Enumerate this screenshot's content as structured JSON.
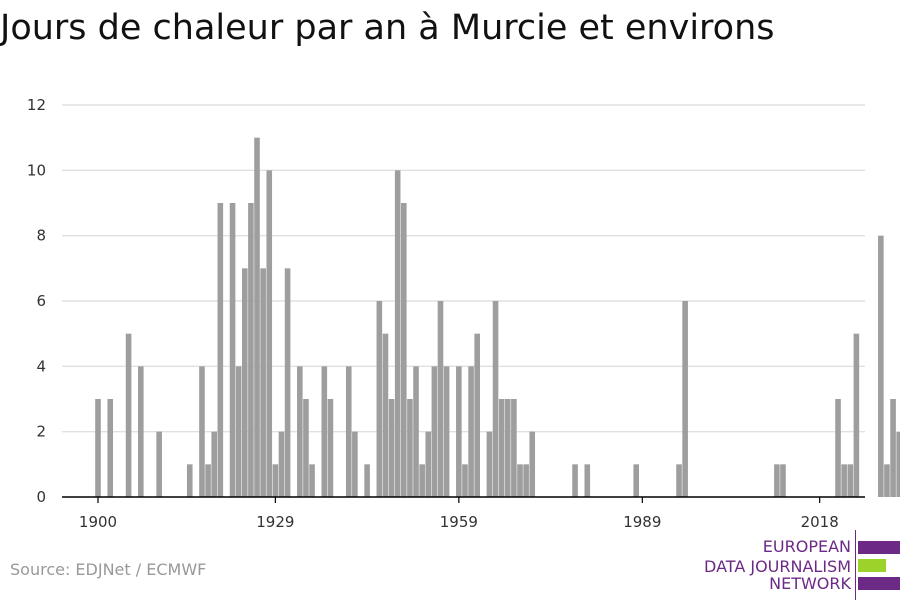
{
  "title": "Jours de chaleur par an à Murcie et environs",
  "source": "Source: EDJNet / ECMWF",
  "logo": {
    "line1": "EUROPEAN",
    "line2": "DATA JOURNALISM",
    "line3": "NETWORK",
    "color_purple": "#6c2a86",
    "color_green": "#9bd32a"
  },
  "colors": {
    "bar": "#9e9e9e",
    "grid": "#e0e0e0",
    "axis": "#000000"
  },
  "chart_data": {
    "type": "bar",
    "title": "Jours de chaleur par an à Murcie et environs",
    "xlabel": "",
    "ylabel": "",
    "ylim": [
      0,
      12
    ],
    "yticks": [
      0,
      2,
      4,
      6,
      8,
      10,
      12
    ],
    "xticks": [
      1900,
      1929,
      1959,
      1989,
      2018
    ],
    "grid": true,
    "x_start": 1900,
    "values": [
      3,
      0,
      3,
      0,
      0,
      5,
      0,
      4,
      0,
      0,
      2,
      0,
      0,
      0,
      0,
      1,
      0,
      4,
      1,
      2,
      9,
      0,
      9,
      4,
      7,
      9,
      11,
      7,
      10,
      1,
      2,
      7,
      0,
      4,
      3,
      1,
      0,
      4,
      3,
      0,
      0,
      4,
      2,
      0,
      1,
      0,
      6,
      5,
      3,
      10,
      9,
      3,
      4,
      1,
      2,
      4,
      6,
      4,
      0,
      4,
      1,
      4,
      5,
      0,
      2,
      6,
      3,
      3,
      3,
      1,
      1,
      2,
      0,
      0,
      0,
      0,
      0,
      0,
      1,
      0,
      1,
      0,
      0,
      0,
      0,
      0,
      0,
      0,
      1,
      0,
      0,
      0,
      0,
      0,
      0,
      1,
      6,
      0,
      0,
      0,
      0,
      0,
      0,
      0,
      0,
      0,
      0,
      0,
      0,
      0,
      0,
      1,
      1,
      0,
      0,
      0,
      0,
      0,
      0,
      0,
      0,
      3,
      1,
      1,
      5,
      0,
      0,
      0,
      8,
      1,
      3,
      2
    ]
  }
}
